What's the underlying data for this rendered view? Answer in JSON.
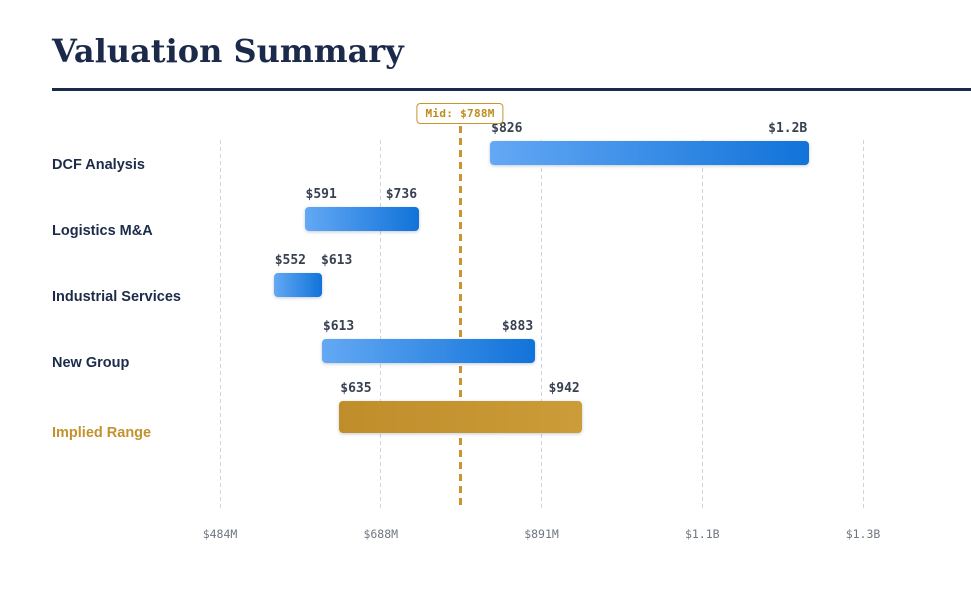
{
  "page": {
    "title": "Valuation Summary",
    "background": "#ffffff",
    "accent_navy": "#1b2a4a",
    "accent_gold": "#c9952d"
  },
  "chart_data": {
    "type": "bar",
    "subtype": "horizontal-range-football-field",
    "title": "Valuation Summary",
    "xlabel": "",
    "ylabel": "",
    "grid": "vertical-dashed",
    "legend": "none",
    "axis": {
      "min": 484,
      "max": 1298,
      "ticks": [
        {
          "value": 484,
          "label": "$484M"
        },
        {
          "value": 687.5,
          "label": "$688M"
        },
        {
          "value": 891,
          "label": "$891M"
        },
        {
          "value": 1094.5,
          "label": "$1.1B"
        },
        {
          "value": 1298,
          "label": "$1.3B"
        }
      ]
    },
    "midline": {
      "value": 788,
      "label": "Mid: $788M",
      "color": "#c9952d",
      "style": "dashed"
    },
    "categories": [
      "DCF Analysis",
      "Logistics M&A",
      "Industrial Services",
      "New Group",
      "Implied Range"
    ],
    "series": [
      {
        "name": "DCF Analysis",
        "low": 826,
        "high": 1230,
        "low_label": "$826",
        "high_label": "$1.2B",
        "kind": "methodology"
      },
      {
        "name": "Logistics M&A",
        "low": 591,
        "high": 736,
        "low_label": "$591",
        "high_label": "$736",
        "kind": "methodology"
      },
      {
        "name": "Industrial Services",
        "low": 552,
        "high": 613,
        "low_label": "$552",
        "high_label": "$613",
        "kind": "methodology"
      },
      {
        "name": "New Group",
        "low": 613,
        "high": 883,
        "low_label": "$613",
        "high_label": "$883",
        "kind": "methodology"
      },
      {
        "name": "Implied Range",
        "low": 635,
        "high": 942,
        "low_label": "$635",
        "high_label": "$942",
        "kind": "implied"
      }
    ],
    "colors": {
      "bar_gradient": [
        "#63a8f4",
        "#1173d9"
      ],
      "implied_gradient": [
        "#c08d2b",
        "#cb9c39"
      ],
      "implied_label_text": "#c3922f",
      "value_text": "#374151",
      "tick_text": "#6e7781",
      "category_text": "#1c2b4a"
    }
  }
}
